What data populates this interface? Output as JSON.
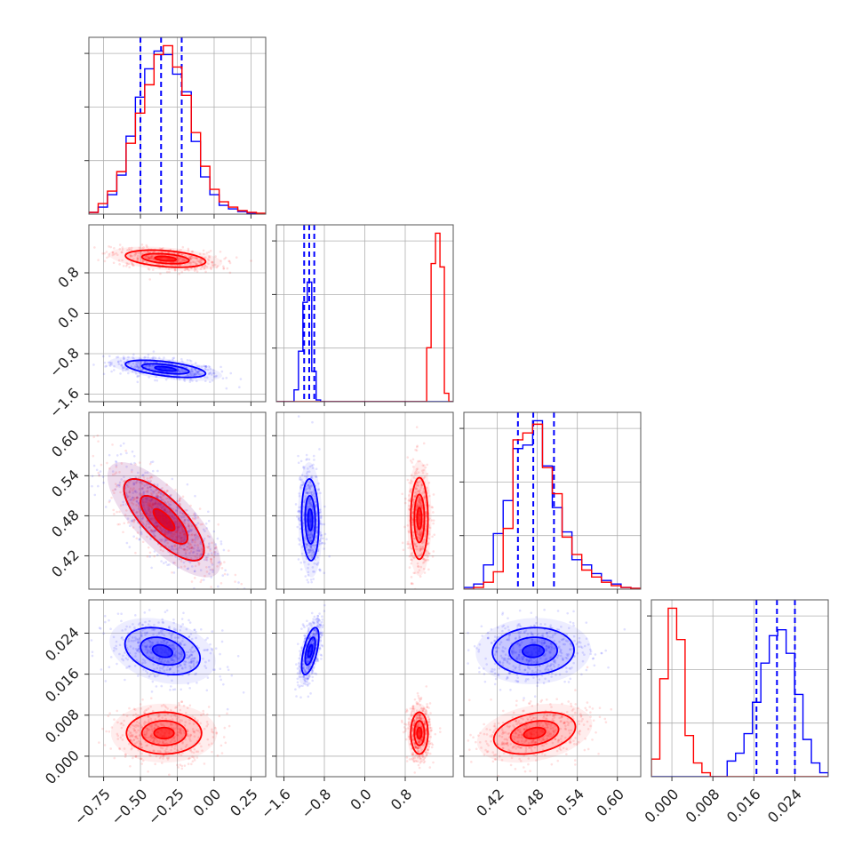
{
  "chart_data": {
    "type": "corner",
    "colors": {
      "blue": "#0000ff",
      "red": "#ff0000",
      "grid": "#b0b0b0",
      "frame": "#555555"
    },
    "parameters": [
      {
        "range": [
          -0.85,
          0.35
        ],
        "ticks": [
          -0.75,
          -0.5,
          -0.25,
          0.0,
          0.25
        ],
        "tick_labels": [
          "−0.75",
          "−0.50",
          "−0.25",
          "0.00",
          "0.25"
        ]
      },
      {
        "range": [
          -1.75,
          1.75
        ],
        "ticks": [
          -1.6,
          -0.8,
          0.0,
          0.8
        ],
        "tick_labels": [
          "−1.6",
          "−0.8",
          "0.0",
          "0.8"
        ]
      },
      {
        "range": [
          0.37,
          0.635
        ],
        "ticks": [
          0.42,
          0.48,
          0.54,
          0.6
        ],
        "tick_labels": [
          "0.42",
          "0.48",
          "0.54",
          "0.60"
        ]
      },
      {
        "range": [
          -0.004,
          0.0305
        ],
        "ticks": [
          0.0,
          0.008,
          0.016,
          0.024
        ],
        "tick_labels": [
          "0.000",
          "0.008",
          "0.016",
          "0.024"
        ]
      }
    ],
    "series": [
      {
        "color": "blue",
        "quantiles": [
          [
            -0.5,
            -0.36,
            -0.22
          ],
          [
            -1.2,
            -1.1,
            -1.0
          ],
          [
            0.451,
            0.474,
            0.505
          ],
          [
            0.0165,
            0.0205,
            0.024
          ]
        ],
        "hist": [
          [
            0.01,
            0.04,
            0.11,
            0.22,
            0.44,
            0.66,
            0.82,
            0.92,
            0.9,
            0.79,
            0.69,
            0.41,
            0.21,
            0.11,
            0.05,
            0.03,
            0.015,
            0.005,
            0.002
          ],
          [
            0,
            0,
            0,
            0,
            0.07,
            0.3,
            0.59,
            0.71,
            0.18,
            0.01,
            0,
            0,
            0,
            0,
            0,
            0,
            0,
            0,
            0,
            0,
            0,
            0,
            0,
            0,
            0,
            0,
            0,
            0,
            0,
            0,
            0,
            0,
            0,
            0,
            0,
            0,
            0,
            0,
            0,
            0
          ],
          [
            0.01,
            0.03,
            0.14,
            0.32,
            0.51,
            0.81,
            0.83,
            0.97,
            0.71,
            0.47,
            0.33,
            0.17,
            0.14,
            0.09,
            0.05,
            0.03,
            0.01,
            0.005
          ],
          [
            0.0,
            0.0,
            0.0,
            0.0,
            0.0,
            0.0,
            0.0,
            0.0,
            0.0,
            0.08,
            0.12,
            0.22,
            0.38,
            0.58,
            0.72,
            0.75,
            0.63,
            0.42,
            0.19,
            0.07,
            0.02
          ]
        ],
        "pairs": {
          "1-0": {
            "mean": [
              -0.33,
              -1.1
            ],
            "sigma": [
              0.16,
              0.1
            ],
            "rho": -0.55
          },
          "2-0": {
            "mean": [
              -0.34,
              0.474
            ],
            "sigma": [
              0.16,
              0.036
            ],
            "rho": -0.75
          },
          "2-1": {
            "mean": [
              -1.08,
              0.474
            ],
            "sigma": [
              0.1,
              0.036
            ],
            "rho": -0.1
          },
          "3-0": {
            "mean": [
              -0.35,
              0.0205
            ],
            "sigma": [
              0.15,
              0.0027
            ],
            "rho": -0.3
          },
          "3-1": {
            "mean": [
              -1.08,
              0.0205
            ],
            "sigma": [
              0.1,
              0.0027
            ],
            "rho": 0.6
          },
          "3-2": {
            "mean": [
              0.474,
              0.0205
            ],
            "sigma": [
              0.036,
              0.0027
            ],
            "rho": 0.05
          }
        }
      },
      {
        "color": "red",
        "hist": [
          [
            0.01,
            0.06,
            0.13,
            0.24,
            0.4,
            0.57,
            0.73,
            0.9,
            0.95,
            0.83,
            0.67,
            0.46,
            0.27,
            0.14,
            0.07,
            0.04,
            0.02,
            0.01,
            0.005
          ],
          [
            0,
            0,
            0,
            0,
            0,
            0,
            0,
            0,
            0,
            0,
            0,
            0,
            0,
            0,
            0,
            0,
            0,
            0,
            0,
            0,
            0,
            0,
            0,
            0,
            0,
            0,
            0,
            0,
            0,
            0,
            0,
            0,
            0,
            0,
            0.32,
            0.82,
            1.0,
            0.8,
            0.05,
            0.0
          ],
          [
            0.0,
            0.01,
            0.04,
            0.1,
            0.35,
            0.86,
            0.9,
            0.95,
            0.7,
            0.55,
            0.3,
            0.2,
            0.11,
            0.07,
            0.04,
            0.02,
            0.01,
            0.005
          ],
          [
            0.09,
            0.5,
            0.86,
            0.7,
            0.21,
            0.07,
            0.02,
            0.0,
            0.0,
            0.0,
            0.0,
            0.0,
            0.0,
            0.0,
            0.0,
            0.0,
            0.0,
            0.0,
            0.0,
            0.0,
            0.0
          ]
        ],
        "pairs": {
          "1-0": {
            "mean": [
              -0.33,
              1.08
            ],
            "sigma": [
              0.16,
              0.1
            ],
            "rho": -0.35
          },
          "2-0": {
            "mean": [
              -0.34,
              0.474
            ],
            "sigma": [
              0.16,
              0.036
            ],
            "rho": -0.75
          },
          "2-1": {
            "mean": [
              1.08,
              0.476
            ],
            "sigma": [
              0.1,
              0.036
            ],
            "rho": 0.0
          },
          "3-0": {
            "mean": [
              -0.34,
              0.0045
            ],
            "sigma": [
              0.15,
              0.0024
            ],
            "rho": 0.0
          },
          "3-1": {
            "mean": [
              1.08,
              0.0045
            ],
            "sigma": [
              0.1,
              0.0024
            ],
            "rho": 0.0
          },
          "3-2": {
            "mean": [
              0.476,
              0.0045
            ],
            "sigma": [
              0.036,
              0.0024
            ],
            "rho": 0.3
          }
        }
      }
    ]
  }
}
